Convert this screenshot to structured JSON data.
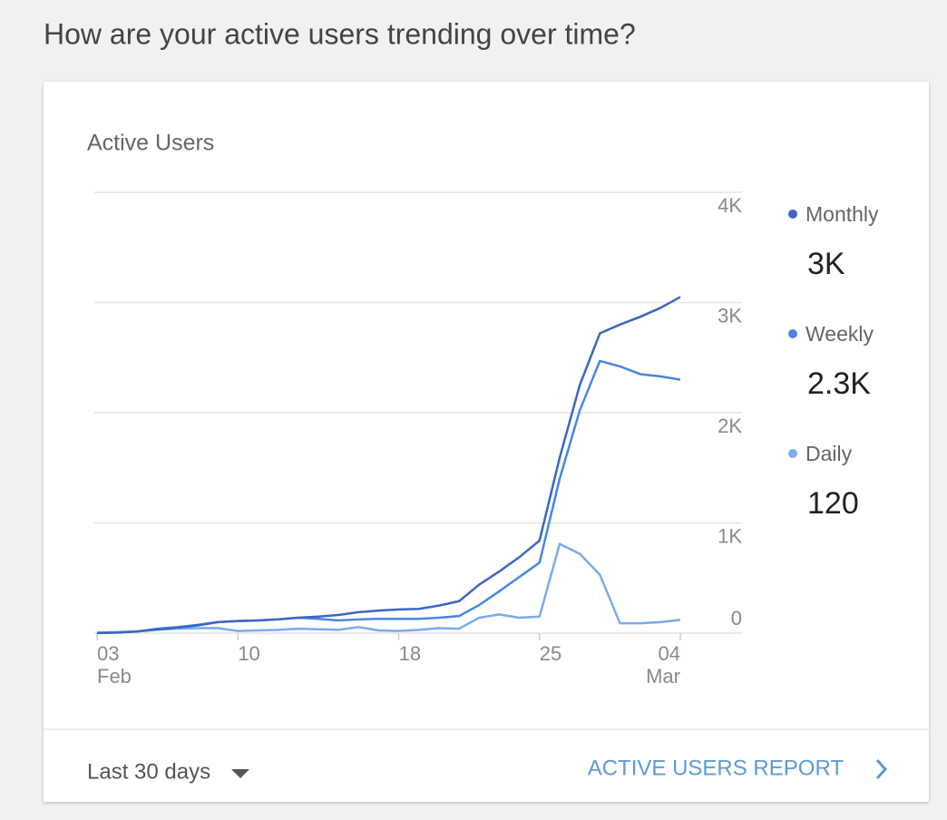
{
  "heading": "How are your active users trending over time?",
  "card": {
    "title": "Active Users",
    "footer": {
      "range": "Last 30 days",
      "link": "ACTIVE USERS REPORT"
    }
  },
  "chart_data": {
    "type": "line",
    "categories": [
      "03\nFeb",
      null,
      null,
      null,
      null,
      null,
      null,
      "10",
      null,
      null,
      null,
      null,
      null,
      null,
      null,
      "18",
      null,
      null,
      null,
      null,
      null,
      null,
      "25",
      null,
      null,
      null,
      null,
      null,
      null,
      "04\nMar"
    ],
    "ylim": [
      0,
      4000
    ],
    "yticks": [
      0,
      {
        "value": 1000,
        "label": "1K"
      },
      {
        "value": 2000,
        "label": "2K"
      },
      {
        "value": 3000,
        "label": "3K"
      },
      {
        "value": 4000,
        "label": "4K"
      }
    ],
    "grid": true,
    "series": [
      {
        "name": "Monthly",
        "color": "#3b66c4",
        "total": {
          "value": 3000,
          "label": "3K"
        },
        "values": [
          0,
          5,
          15,
          35,
          50,
          70,
          100,
          110,
          115,
          125,
          140,
          150,
          165,
          190,
          205,
          215,
          220,
          250,
          290,
          440,
          560,
          690,
          840,
          1590,
          2250,
          2720,
          2800,
          2870,
          2950,
          3050
        ]
      },
      {
        "name": "Weekly",
        "color": "#4a86e0",
        "total": {
          "value": 2300,
          "label": "2.3K"
        },
        "values": [
          3,
          8,
          15,
          40,
          55,
          75,
          100,
          110,
          115,
          125,
          140,
          130,
          115,
          125,
          130,
          130,
          130,
          140,
          155,
          255,
          380,
          510,
          640,
          1400,
          2020,
          2470,
          2420,
          2350,
          2330,
          2300
        ]
      },
      {
        "name": "Daily",
        "color": "#7baaf0",
        "total": 120,
        "values": [
          3,
          5,
          15,
          30,
          40,
          45,
          45,
          20,
          25,
          30,
          40,
          35,
          30,
          55,
          25,
          20,
          30,
          45,
          40,
          140,
          170,
          140,
          150,
          810,
          720,
          530,
          90,
          90,
          100,
          120
        ]
      }
    ]
  }
}
